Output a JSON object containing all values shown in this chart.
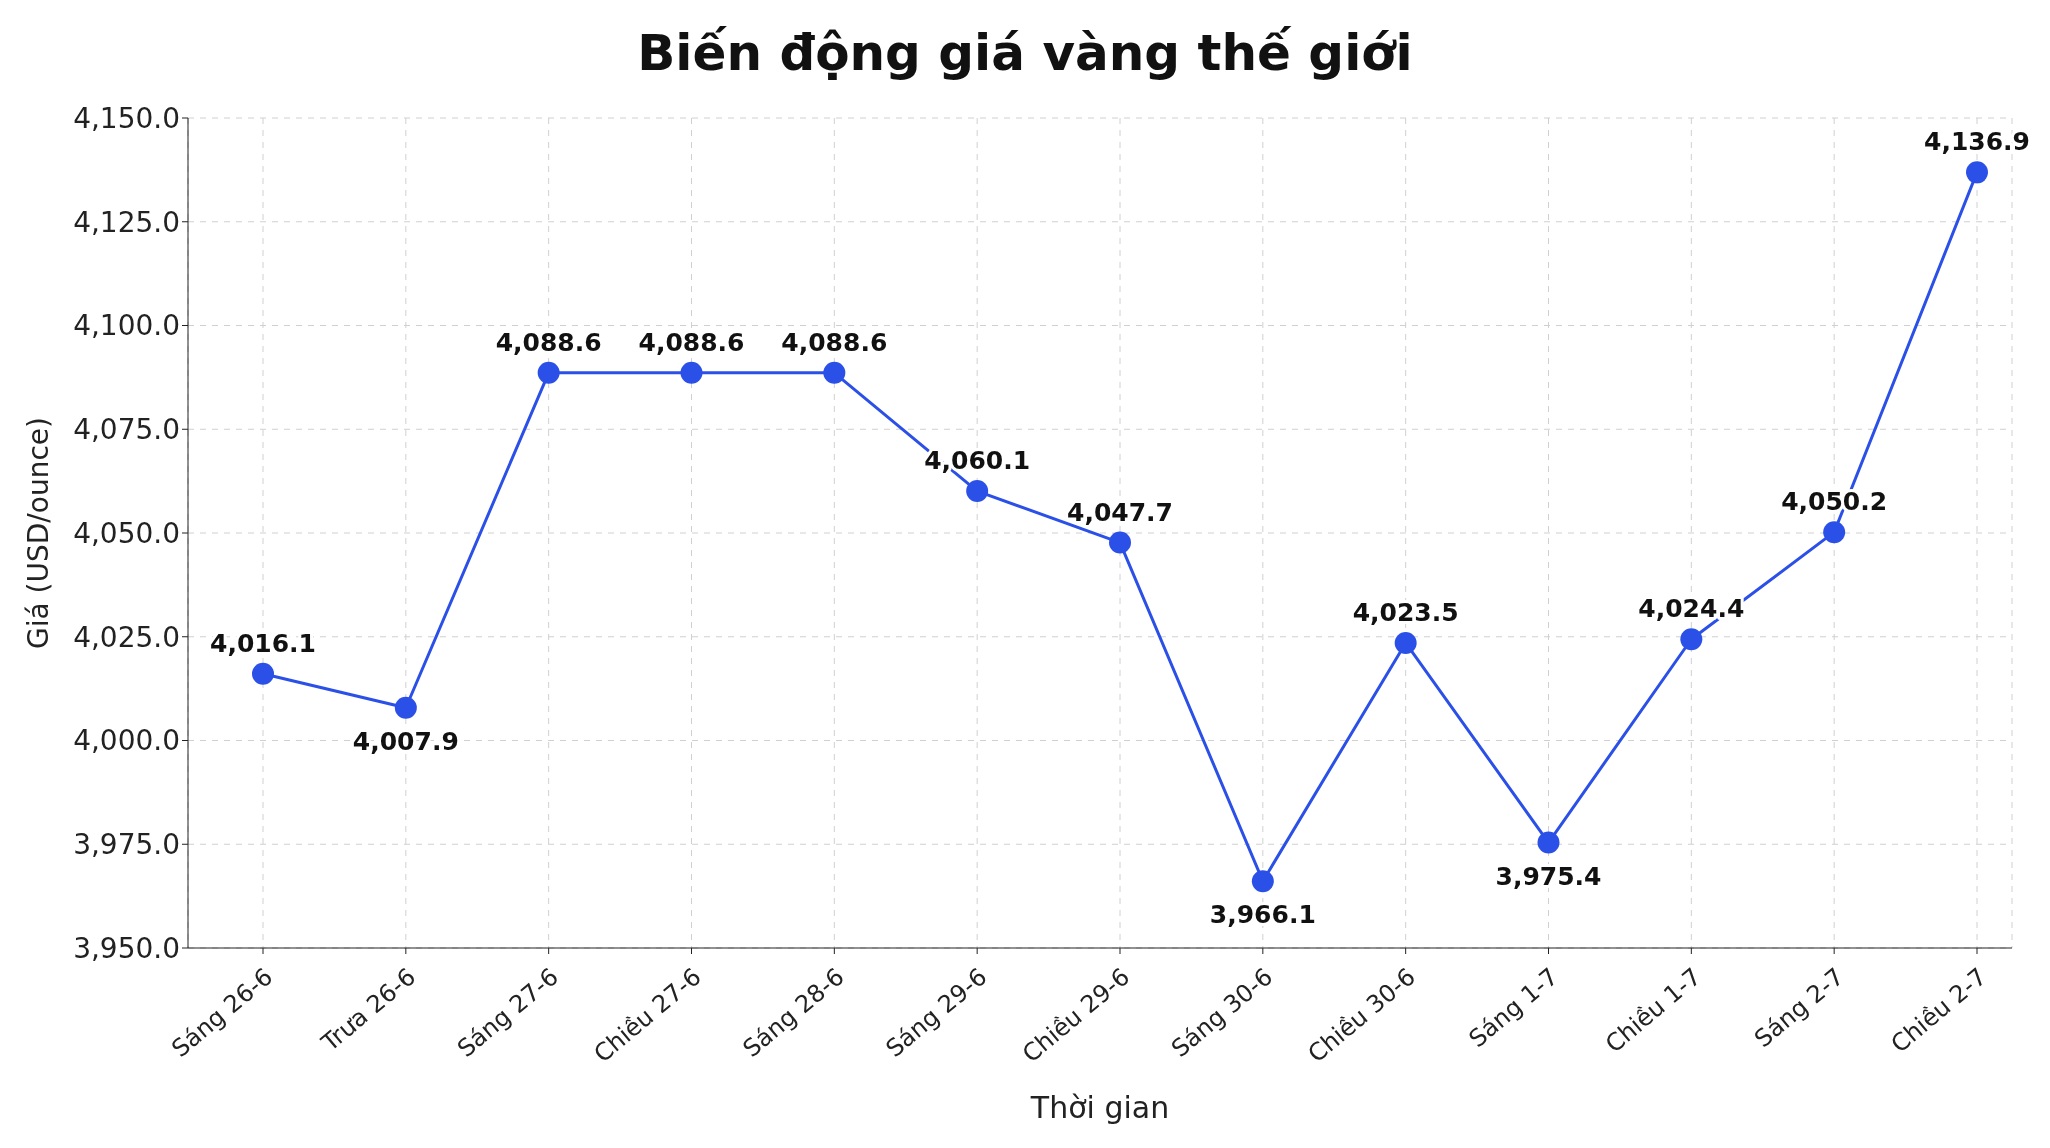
{
  "chart_data": {
    "type": "line",
    "title": "Biến động giá vàng thế giới",
    "xlabel": "Thời gian",
    "ylabel": "Giá (USD/ounce)",
    "categories": [
      "Sáng 26-6",
      "Trưa 26-6",
      "Sáng 27-6",
      "Chiều 27-6",
      "Sáng 28-6",
      "Sáng 29-6",
      "Chiều 29-6",
      "Sáng 30-6",
      "Chiều 30-6",
      "Sáng 1-7",
      "Chiều 1-7",
      "Sáng 2-7",
      "Chiều 2-7"
    ],
    "series": [
      {
        "color": "#2b50e8",
        "values": [
          4016.1,
          4007.9,
          4088.6,
          4088.6,
          4088.6,
          4060.1,
          4047.7,
          3966.1,
          4023.5,
          3975.4,
          4024.4,
          4050.2,
          4136.9
        ],
        "value_labels": [
          "4,016.1",
          "4,007.9",
          "4,088.6",
          "4,088.6",
          "4,088.6",
          "4,060.1",
          "4,047.7",
          "3,966.1",
          "4,023.5",
          "3,975.4",
          "4,024.4",
          "4,050.2",
          "4,136.9"
        ]
      }
    ],
    "ylim": [
      3950,
      4150
    ],
    "yticks": [
      {
        "value": 3950,
        "label": "3,950.0"
      },
      {
        "value": 3975,
        "label": "3,975.0"
      },
      {
        "value": 4000,
        "label": "4,000.0"
      },
      {
        "value": 4025,
        "label": "4,025.0"
      },
      {
        "value": 4050,
        "label": "4,050.0"
      },
      {
        "value": 4075,
        "label": "4,075.0"
      },
      {
        "value": 4100,
        "label": "4,100.0"
      },
      {
        "value": 4125,
        "label": "4,125.0"
      },
      {
        "value": 4150,
        "label": "4,150.0"
      }
    ],
    "grid": true,
    "marker": "circle",
    "line_style": "solid"
  }
}
